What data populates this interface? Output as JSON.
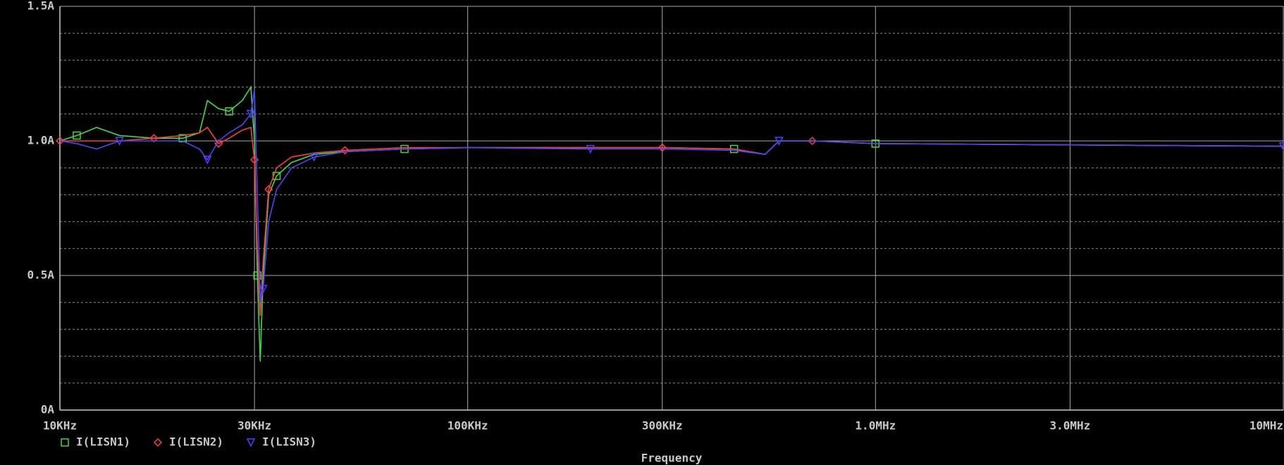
{
  "chart_data": {
    "type": "line",
    "x_label": "Frequency",
    "x_log": true,
    "grid": true,
    "x": [
      10000,
      11000,
      12300,
      14000,
      17000,
      20000,
      22000,
      23000,
      24500,
      26000,
      28000,
      29400,
      30000,
      30500,
      31000,
      31500,
      32500,
      34000,
      37000,
      42000,
      50000,
      70000,
      100000,
      200000,
      300000,
      450000,
      536000,
      580000,
      700000,
      1000000,
      3000000,
      10000000
    ],
    "series": [
      {
        "name": "I(LISN1)",
        "color": "#3cdc3c",
        "marker": "square",
        "values": [
          1.0,
          1.02,
          1.05,
          1.02,
          1.01,
          1.01,
          1.03,
          1.15,
          1.12,
          1.11,
          1.15,
          1.2,
          1.0,
          0.5,
          0.18,
          0.5,
          0.8,
          0.87,
          0.92,
          0.95,
          0.96,
          0.97,
          0.975,
          0.975,
          0.975,
          0.97,
          0.95,
          1.0,
          1.0,
          0.99,
          0.985,
          0.98
        ]
      },
      {
        "name": "I(LISN2)",
        "color": "#ff3c3c",
        "marker": "diamond",
        "values": [
          1.0,
          1.0,
          1.0,
          1.0,
          1.01,
          1.02,
          1.03,
          1.05,
          0.99,
          1.01,
          1.04,
          1.05,
          0.93,
          0.6,
          0.35,
          0.55,
          0.82,
          0.9,
          0.94,
          0.955,
          0.965,
          0.975,
          0.975,
          0.975,
          0.975,
          0.97,
          0.95,
          1.0,
          1.0,
          0.99,
          0.985,
          0.98
        ]
      },
      {
        "name": "I(LISN3)",
        "color": "#5040ff",
        "marker": "triangle",
        "values": [
          1.0,
          0.99,
          0.97,
          1.0,
          1.0,
          1.0,
          0.97,
          0.93,
          1.0,
          1.03,
          1.06,
          1.1,
          1.19,
          0.8,
          0.4,
          0.45,
          0.7,
          0.82,
          0.9,
          0.94,
          0.96,
          0.97,
          0.975,
          0.97,
          0.97,
          0.965,
          0.95,
          1.0,
          1.0,
          0.99,
          0.985,
          0.98
        ]
      }
    ],
    "xlim": [
      10000,
      10000000
    ],
    "xticks": [
      {
        "value": 10000,
        "label": "10KHz"
      },
      {
        "value": 30000,
        "label": "30KHz"
      },
      {
        "value": 100000,
        "label": "100KHz"
      },
      {
        "value": 300000,
        "label": "300KHz"
      },
      {
        "value": 1000000,
        "label": "1.0MHz"
      },
      {
        "value": 3000000,
        "label": "3.0MHz"
      },
      {
        "value": 10000000,
        "label": "10MHz"
      }
    ],
    "ylim": [
      0,
      1.5
    ],
    "yticks": [
      {
        "value": 0,
        "label": "0A"
      },
      {
        "value": 0.5,
        "label": "0.5A"
      },
      {
        "value": 1.0,
        "label": "1.0A"
      },
      {
        "value": 1.5,
        "label": "1.5A"
      }
    ],
    "minor_yticks": [
      0.1,
      0.2,
      0.3,
      0.4,
      0.6,
      0.7,
      0.8,
      0.9,
      1.1,
      1.2,
      1.3,
      1.4
    ]
  }
}
